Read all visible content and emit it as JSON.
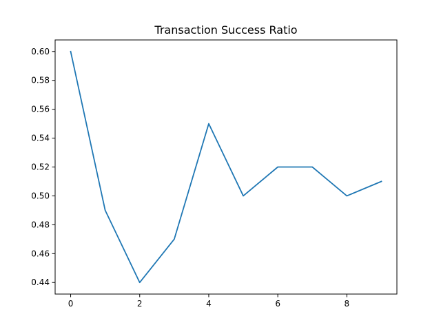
{
  "chart_data": {
    "type": "line",
    "title": "Transaction Success Ratio",
    "xlabel": "",
    "ylabel": "",
    "x": [
      0,
      1,
      2,
      3,
      4,
      5,
      6,
      7,
      8,
      9
    ],
    "series": [
      {
        "values": [
          0.6,
          0.49,
          0.44,
          0.47,
          0.55,
          0.5,
          0.52,
          0.52,
          0.5,
          0.51
        ]
      }
    ],
    "xlim": [
      -0.45,
      9.45
    ],
    "ylim": [
      0.432,
      0.608
    ],
    "x_ticks": [
      0,
      2,
      4,
      6,
      8
    ],
    "x_tick_labels": [
      "0",
      "2",
      "4",
      "6",
      "8"
    ],
    "y_ticks": [
      0.44,
      0.46,
      0.48,
      0.5,
      0.52,
      0.54,
      0.56,
      0.58,
      0.6
    ],
    "y_tick_labels": [
      "0.44",
      "0.46",
      "0.48",
      "0.50",
      "0.52",
      "0.54",
      "0.56",
      "0.58",
      "0.60"
    ],
    "grid": false,
    "legend": "none",
    "colors": {
      "line": "#1f77b4",
      "axes": "#000000",
      "background": "#ffffff"
    }
  }
}
